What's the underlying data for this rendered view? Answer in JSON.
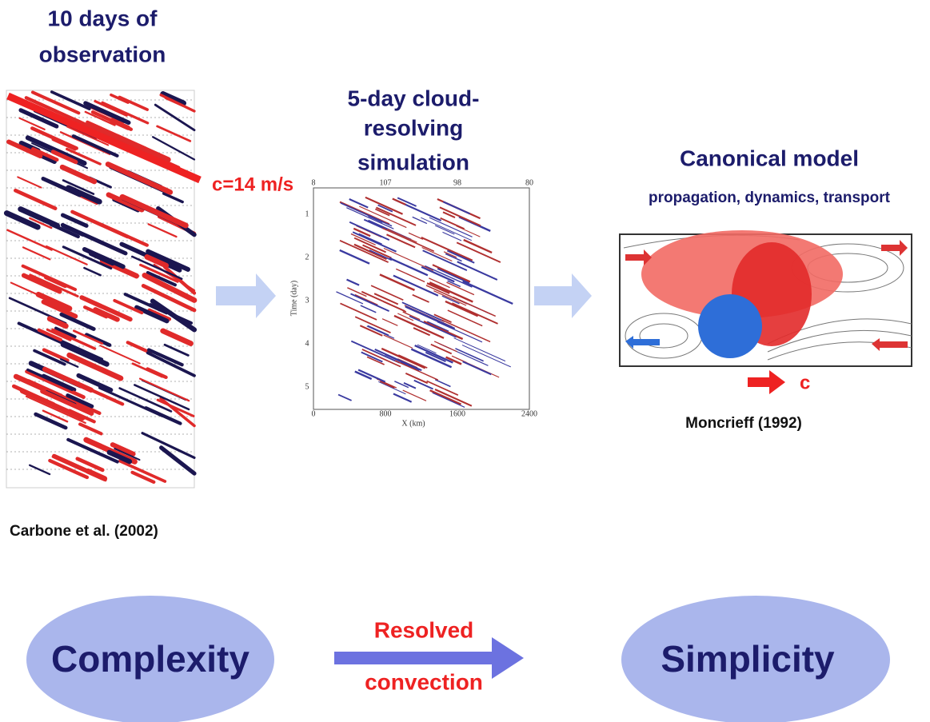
{
  "observation": {
    "title": [
      "10 days of",
      "observation"
    ],
    "speed_label": "c=14 m/s",
    "credit": "Carbone et al. (2002)"
  },
  "simulation": {
    "title": [
      "5-day cloud-",
      "resolving",
      "simulation"
    ],
    "x_axis_label": "X (km)",
    "y_axis_label": "Time (day)",
    "x_ticks": [
      "0",
      "800",
      "1600",
      "2400"
    ],
    "y_ticks": [
      "1",
      "2",
      "3",
      "4",
      "5"
    ],
    "top_ticks": [
      "8",
      "107",
      "98",
      "80"
    ]
  },
  "model": {
    "title": "Canonical model",
    "subtitle": "propagation, dynamics, transport",
    "arrow_label": "c",
    "credit": "Moncrieff (1992)"
  },
  "bottom": {
    "left": "Complexity",
    "arrow_label": [
      "Resolved",
      "convection"
    ],
    "right": "Simplicity"
  }
}
